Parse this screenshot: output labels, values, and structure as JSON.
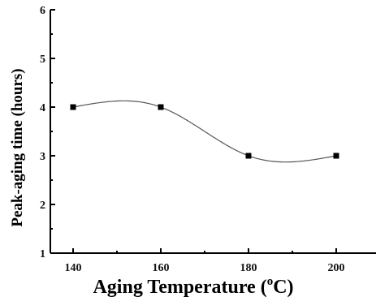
{
  "chart_data": {
    "type": "scatter",
    "title": "",
    "xlabel": "Aging Temperature (°C)",
    "xlabel_parts": {
      "main": "Aging Temperature (",
      "sup": "o",
      "tail": "C)"
    },
    "ylabel": "Peak-aging time (hours)",
    "xlim": [
      130,
      210
    ],
    "ylim": [
      1,
      6
    ],
    "x_ticks": [
      140,
      160,
      180,
      200
    ],
    "y_ticks": [
      1,
      2,
      3,
      4,
      5,
      6
    ],
    "grid": false,
    "legend": "none",
    "smooth_fit_line": true,
    "series": [
      {
        "x": [
          140,
          160,
          180,
          200
        ],
        "y": [
          4,
          4,
          3,
          3
        ]
      }
    ],
    "colors": {
      "marker": "#000000",
      "line": "#555555",
      "axis": "#000000"
    }
  }
}
